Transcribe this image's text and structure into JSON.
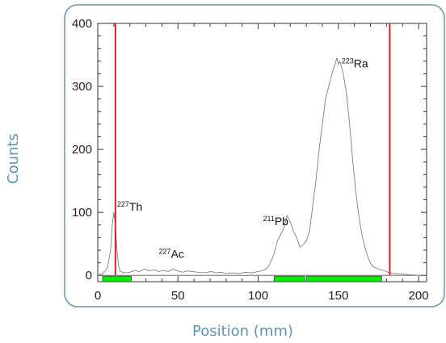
{
  "chart_data": {
    "type": "line",
    "title": "",
    "xlabel": "Position (mm)",
    "ylabel": "Counts",
    "xlim": [
      0,
      205
    ],
    "ylim": [
      -10,
      400
    ],
    "x_ticks": [
      0,
      50,
      100,
      150,
      200
    ],
    "y_ticks": [
      0,
      100,
      200,
      300,
      400
    ],
    "grid": false,
    "frame_color": "#6b93ab",
    "series": [
      {
        "color": "#7f7f7f",
        "points": [
          [
            0,
            0
          ],
          [
            2,
            2
          ],
          [
            4,
            5
          ],
          [
            6,
            12
          ],
          [
            8,
            40
          ],
          [
            9,
            80
          ],
          [
            10,
            100
          ],
          [
            11,
            80
          ],
          [
            12,
            40
          ],
          [
            13,
            15
          ],
          [
            14,
            6
          ],
          [
            17,
            4
          ],
          [
            20,
            5
          ],
          [
            23,
            8
          ],
          [
            26,
            6
          ],
          [
            29,
            10
          ],
          [
            32,
            7
          ],
          [
            35,
            9
          ],
          [
            38,
            6
          ],
          [
            41,
            8
          ],
          [
            44,
            6
          ],
          [
            47,
            10
          ],
          [
            50,
            7
          ],
          [
            53,
            5
          ],
          [
            56,
            7
          ],
          [
            59,
            6
          ],
          [
            62,
            5
          ],
          [
            65,
            4
          ],
          [
            68,
            5
          ],
          [
            71,
            6
          ],
          [
            74,
            4
          ],
          [
            77,
            5
          ],
          [
            80,
            3
          ],
          [
            84,
            4
          ],
          [
            88,
            3
          ],
          [
            92,
            5
          ],
          [
            96,
            4
          ],
          [
            100,
            6
          ],
          [
            103,
            8
          ],
          [
            106,
            12
          ],
          [
            108,
            22
          ],
          [
            110,
            35
          ],
          [
            112,
            55
          ],
          [
            114,
            65
          ],
          [
            116,
            75
          ],
          [
            118,
            95
          ],
          [
            120,
            85
          ],
          [
            122,
            70
          ],
          [
            124,
            60
          ],
          [
            126,
            45
          ],
          [
            128,
            48
          ],
          [
            130,
            55
          ],
          [
            132,
            70
          ],
          [
            134,
            110
          ],
          [
            136,
            150
          ],
          [
            138,
            200
          ],
          [
            140,
            240
          ],
          [
            142,
            280
          ],
          [
            144,
            300
          ],
          [
            146,
            320
          ],
          [
            148,
            335
          ],
          [
            149,
            345
          ],
          [
            150,
            335
          ],
          [
            151,
            340
          ],
          [
            153,
            320
          ],
          [
            155,
            290
          ],
          [
            157,
            240
          ],
          [
            159,
            180
          ],
          [
            161,
            130
          ],
          [
            163,
            90
          ],
          [
            165,
            60
          ],
          [
            167,
            40
          ],
          [
            169,
            25
          ],
          [
            171,
            15
          ],
          [
            173,
            12
          ],
          [
            175,
            10
          ],
          [
            178,
            8
          ],
          [
            180,
            6
          ],
          [
            182,
            4
          ],
          [
            185,
            3
          ],
          [
            190,
            2
          ],
          [
            195,
            1
          ],
          [
            200,
            0
          ]
        ]
      }
    ],
    "vertical_lines": [
      {
        "x": 11,
        "color": "#e02020"
      },
      {
        "x": 182,
        "color": "#e02020"
      }
    ],
    "bands": [
      {
        "x0": 3,
        "x1": 21,
        "color": "#00ee00"
      },
      {
        "x0": 110,
        "x1": 129,
        "color": "#00ee00"
      },
      {
        "x0": 130,
        "x1": 177,
        "color": "#00ee00"
      }
    ],
    "annotations": [
      {
        "mass": "227",
        "symbol": "Th",
        "x": 12,
        "y": 103
      },
      {
        "mass": "227",
        "symbol": "Ac",
        "x": 38,
        "y": 28
      },
      {
        "mass": "211",
        "symbol": "Pb",
        "x": 103,
        "y": 80
      },
      {
        "mass": "223",
        "symbol": "Ra",
        "x": 152,
        "y": 330
      }
    ]
  }
}
